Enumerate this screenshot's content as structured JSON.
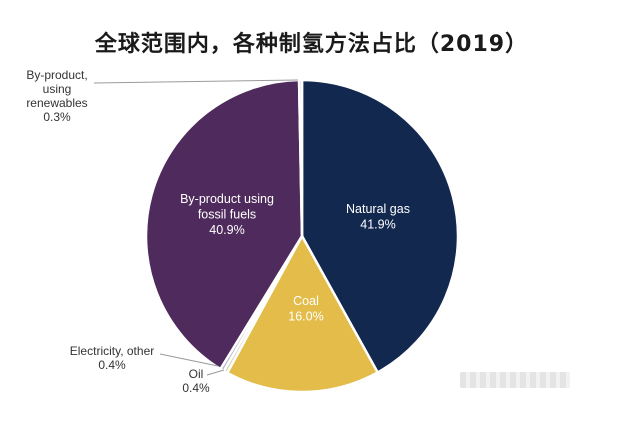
{
  "chart_data": {
    "type": "pie",
    "title": "全球范围内，各种制氢方法占比（2019）",
    "unit": "%",
    "slices": [
      {
        "name": "Natural gas",
        "value": 41.9,
        "label": "41.9%",
        "color": "#12284f",
        "text_color": "#ffffff",
        "label_pos": "inside"
      },
      {
        "name": "Coal",
        "value": 16.0,
        "label": "16.0%",
        "color": "#e3bc4a",
        "text_color": "#ffffff",
        "label_pos": "inside"
      },
      {
        "name": "Oil",
        "value": 0.4,
        "label": "0.4%",
        "color": "#d9d0b0",
        "text_color": "#333333",
        "label_pos": "outside"
      },
      {
        "name": "Electricity, other",
        "value": 0.4,
        "label": "0.4%",
        "color": "#b9b2c9",
        "text_color": "#333333",
        "label_pos": "outside"
      },
      {
        "name": "By-product using fossil fuels",
        "value": 40.9,
        "label": "40.9%",
        "color": "#4f2a5c",
        "text_color": "#ffffff",
        "label_pos": "inside"
      },
      {
        "name": "By-product, using renewables",
        "value": 0.3,
        "label": "0.3%",
        "color": "#cfc6da",
        "text_color": "#333333",
        "label_pos": "outside"
      }
    ]
  }
}
